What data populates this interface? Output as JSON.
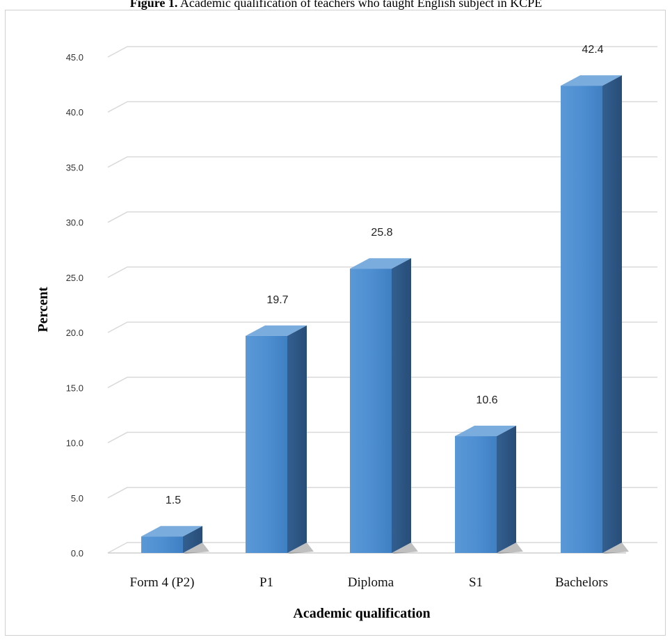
{
  "caption": {
    "label": "Figure 1.",
    "text": "Academic qualification of teachers who taught English subject in KCPE"
  },
  "chart_data": {
    "type": "bar",
    "categories": [
      "Form 4 (P2)",
      "P1",
      "Diploma",
      "S1",
      "Bachelors"
    ],
    "values": [
      1.5,
      19.7,
      25.8,
      10.6,
      42.4
    ],
    "data_labels": [
      "1.5",
      "19.7",
      "25.8",
      "10.6",
      "42.4"
    ],
    "xlabel": "Academic qualification",
    "ylabel": "Percent",
    "ylim": [
      0,
      45
    ],
    "yticks": [
      "0.0",
      "5.0",
      "10.0",
      "15.0",
      "20.0",
      "25.0",
      "30.0",
      "35.0",
      "40.0",
      "45.0"
    ],
    "grid": true,
    "style": "3d-column",
    "colors": {
      "bar_front": "#4f8fd0",
      "bar_side": "#2f5f94",
      "bar_top": "#7aadde",
      "grid": "#d9d9d9"
    }
  }
}
